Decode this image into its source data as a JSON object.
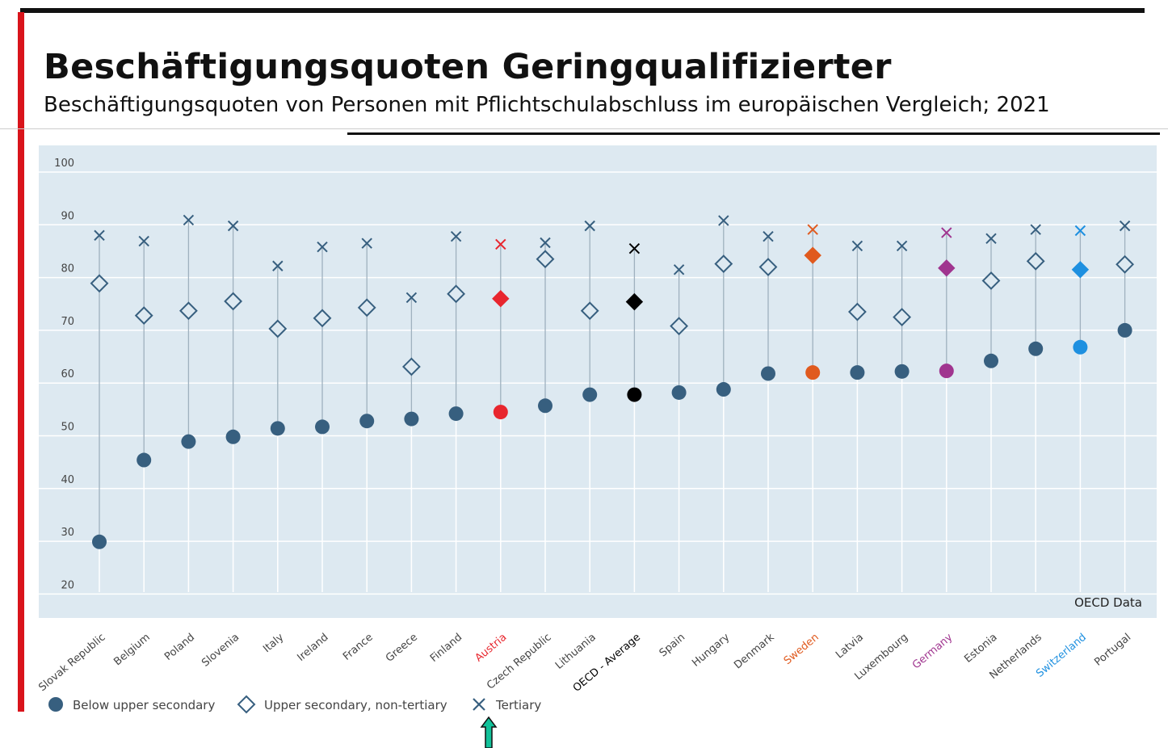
{
  "title": "Beschäftigungsquoten Geringqualifizierter",
  "subtitle": "Beschäftigungsquoten von Personen mit Pflichtschulabschluss im europäischen Vergleich; 2021",
  "source": "OECD Data",
  "colors": {
    "default": "#375f7f",
    "background": "#dde9f1",
    "Austria": "#e8262e",
    "OECD - Average": "#000000",
    "Sweden": "#e05a1e",
    "Germany": "#a0358f",
    "Switzerland": "#1e90e0"
  },
  "chart_data": {
    "type": "scatter",
    "title": "Beschäftigungsquoten Geringqualifizierter",
    "ylim": [
      20,
      100
    ],
    "yticks": [
      20,
      30,
      40,
      50,
      60,
      70,
      80,
      90,
      100
    ],
    "grid": true,
    "legend_position": "bottom-left",
    "categories": [
      "Slovak Republic",
      "Belgium",
      "Poland",
      "Slovenia",
      "Italy",
      "Ireland",
      "France",
      "Greece",
      "Finland",
      "Austria",
      "Czech Republic",
      "Lithuania",
      "OECD - Average",
      "Spain",
      "Hungary",
      "Denmark",
      "Sweden",
      "Latvia",
      "Luxembourg",
      "Germany",
      "Estonia",
      "Netherlands",
      "Switzerland",
      "Portugal"
    ],
    "series": [
      {
        "name": "Below upper secondary",
        "marker": "circle",
        "values": [
          29.9,
          45.4,
          48.9,
          49.8,
          51.4,
          51.7,
          52.8,
          53.2,
          54.2,
          54.5,
          55.7,
          57.8,
          57.8,
          58.2,
          58.8,
          61.8,
          62.0,
          62.0,
          62.2,
          62.3,
          64.2,
          66.5,
          66.8,
          70.0
        ]
      },
      {
        "name": "Upper secondary, non-tertiary",
        "marker": "diamond",
        "values": [
          78.9,
          72.8,
          73.7,
          75.5,
          70.3,
          72.3,
          74.3,
          63.1,
          76.9,
          76.0,
          83.5,
          73.7,
          75.4,
          70.8,
          82.6,
          82.0,
          84.2,
          73.5,
          72.5,
          81.8,
          79.4,
          83.1,
          81.5,
          82.5
        ]
      },
      {
        "name": "Tertiary",
        "marker": "x",
        "values": [
          88.0,
          86.9,
          90.9,
          89.8,
          82.2,
          85.8,
          86.5,
          76.2,
          87.8,
          86.3,
          86.6,
          89.8,
          85.5,
          81.5,
          90.8,
          87.8,
          89.1,
          86.0,
          86.0,
          88.5,
          87.4,
          89.1,
          88.9,
          89.8
        ]
      }
    ]
  }
}
